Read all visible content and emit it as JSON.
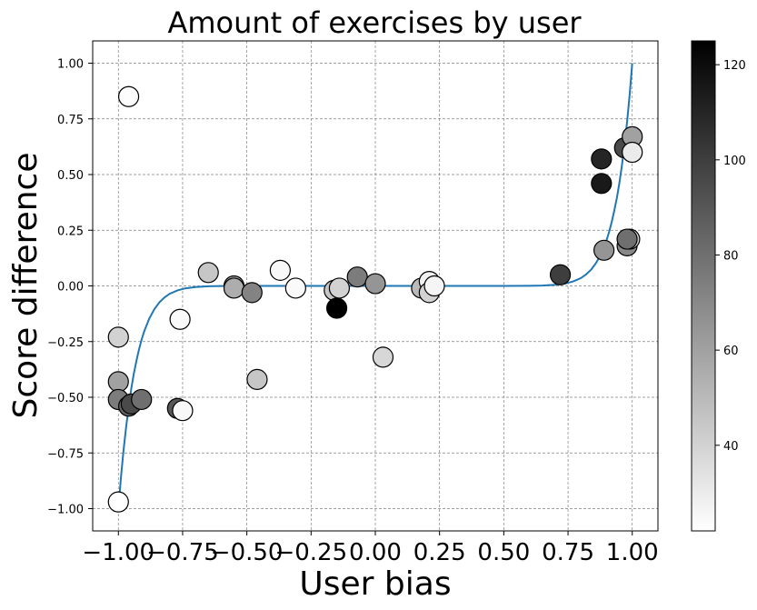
{
  "chart_data": {
    "type": "scatter",
    "title": "Amount of exercises by user",
    "xlabel": "User bias",
    "ylabel": "Score difference",
    "xlim": [
      -1.1,
      1.1
    ],
    "ylim": [
      -1.1,
      1.1
    ],
    "xticks": [
      -1.0,
      -0.75,
      -0.5,
      -0.25,
      0.0,
      0.25,
      0.5,
      0.75,
      1.0
    ],
    "xtick_labels": [
      "−1.00",
      "−0.75",
      "−0.50",
      "−0.25",
      "0.00",
      "0.25",
      "0.50",
      "0.75",
      "1.00"
    ],
    "yticks": [
      -1.0,
      -0.75,
      -0.5,
      -0.25,
      0.0,
      0.25,
      0.5,
      0.75,
      1.0
    ],
    "ytick_labels": [
      "−1.00",
      "−0.75",
      "−0.50",
      "−0.25",
      "0.00",
      "0.25",
      "0.50",
      "0.75",
      "1.00"
    ],
    "grid": true,
    "colorbar": {
      "min": 22,
      "max": 125,
      "ticks": [
        40,
        60,
        80,
        100,
        120
      ],
      "tick_labels": [
        "40",
        "60",
        "80",
        "100",
        "120"
      ],
      "colormap": "Greys",
      "color_low": "#ffffff",
      "color_high": "#000000"
    },
    "curve": {
      "color": "#1f77b4",
      "description_formula": "y = x^15",
      "x": [
        -1.0,
        -0.99,
        -0.98,
        -0.97,
        -0.96,
        -0.95,
        -0.94,
        -0.93,
        -0.92,
        -0.91,
        -0.9,
        -0.88,
        -0.86,
        -0.84,
        -0.82,
        -0.8,
        -0.77,
        -0.74,
        -0.7,
        -0.65,
        -0.6,
        -0.5,
        -0.4,
        -0.2,
        0.0,
        0.2,
        0.4,
        0.5,
        0.6,
        0.65,
        0.7,
        0.74,
        0.77,
        0.8,
        0.82,
        0.84,
        0.86,
        0.88,
        0.9,
        0.91,
        0.92,
        0.93,
        0.94,
        0.95,
        0.96,
        0.97,
        0.98,
        0.99,
        1.0
      ],
      "y": [
        -1.0,
        -0.86,
        -0.739,
        -0.633,
        -0.542,
        -0.463,
        -0.395,
        -0.337,
        -0.286,
        -0.243,
        -0.206,
        -0.147,
        -0.104,
        -0.073,
        -0.051,
        -0.035,
        -0.02,
        -0.011,
        -0.005,
        -0.0016,
        -0.0005,
        0.0,
        0.0,
        0.0,
        0.0,
        0.0,
        0.0,
        0.0,
        0.0005,
        0.0016,
        0.005,
        0.011,
        0.02,
        0.035,
        0.051,
        0.073,
        0.104,
        0.147,
        0.206,
        0.243,
        0.286,
        0.337,
        0.395,
        0.463,
        0.542,
        0.633,
        0.739,
        0.86,
        1.0
      ]
    },
    "points": [
      {
        "x": -1.0,
        "y": -0.97,
        "c": 22
      },
      {
        "x": -1.0,
        "y": -0.23,
        "c": 40
      },
      {
        "x": -1.0,
        "y": -0.43,
        "c": 60
      },
      {
        "x": -1.0,
        "y": -0.51,
        "c": 75
      },
      {
        "x": -0.96,
        "y": 0.85,
        "c": 23
      },
      {
        "x": -0.96,
        "y": -0.54,
        "c": 85
      },
      {
        "x": -0.95,
        "y": -0.53,
        "c": 95
      },
      {
        "x": -0.91,
        "y": -0.51,
        "c": 80
      },
      {
        "x": -0.77,
        "y": -0.55,
        "c": 90
      },
      {
        "x": -0.75,
        "y": -0.56,
        "c": 25
      },
      {
        "x": -0.76,
        "y": -0.15,
        "c": 24
      },
      {
        "x": -0.65,
        "y": 0.06,
        "c": 45
      },
      {
        "x": -0.55,
        "y": 0.0,
        "c": 60
      },
      {
        "x": -0.55,
        "y": -0.01,
        "c": 55
      },
      {
        "x": -0.48,
        "y": -0.03,
        "c": 72
      },
      {
        "x": -0.46,
        "y": -0.42,
        "c": 45
      },
      {
        "x": -0.37,
        "y": 0.07,
        "c": 25
      },
      {
        "x": -0.31,
        "y": -0.01,
        "c": 24
      },
      {
        "x": -0.16,
        "y": -0.02,
        "c": 45
      },
      {
        "x": -0.14,
        "y": -0.01,
        "c": 40
      },
      {
        "x": -0.15,
        "y": -0.1,
        "c": 125
      },
      {
        "x": -0.07,
        "y": 0.04,
        "c": 75
      },
      {
        "x": 0.0,
        "y": 0.01,
        "c": 65
      },
      {
        "x": 0.03,
        "y": -0.32,
        "c": 38
      },
      {
        "x": 0.18,
        "y": -0.01,
        "c": 50
      },
      {
        "x": 0.21,
        "y": 0.02,
        "c": 28
      },
      {
        "x": 0.21,
        "y": -0.03,
        "c": 40
      },
      {
        "x": 0.23,
        "y": 0.0,
        "c": 26
      },
      {
        "x": 0.72,
        "y": 0.05,
        "c": 100
      },
      {
        "x": 0.88,
        "y": 0.57,
        "c": 110
      },
      {
        "x": 0.88,
        "y": 0.46,
        "c": 115
      },
      {
        "x": 0.89,
        "y": 0.16,
        "c": 65
      },
      {
        "x": 0.97,
        "y": 0.62,
        "c": 95
      },
      {
        "x": 0.98,
        "y": 0.18,
        "c": 70
      },
      {
        "x": 0.99,
        "y": 0.21,
        "c": 40
      },
      {
        "x": 0.98,
        "y": 0.21,
        "c": 80
      },
      {
        "x": 1.0,
        "y": 0.67,
        "c": 60
      },
      {
        "x": 1.0,
        "y": 0.6,
        "c": 30
      }
    ]
  }
}
